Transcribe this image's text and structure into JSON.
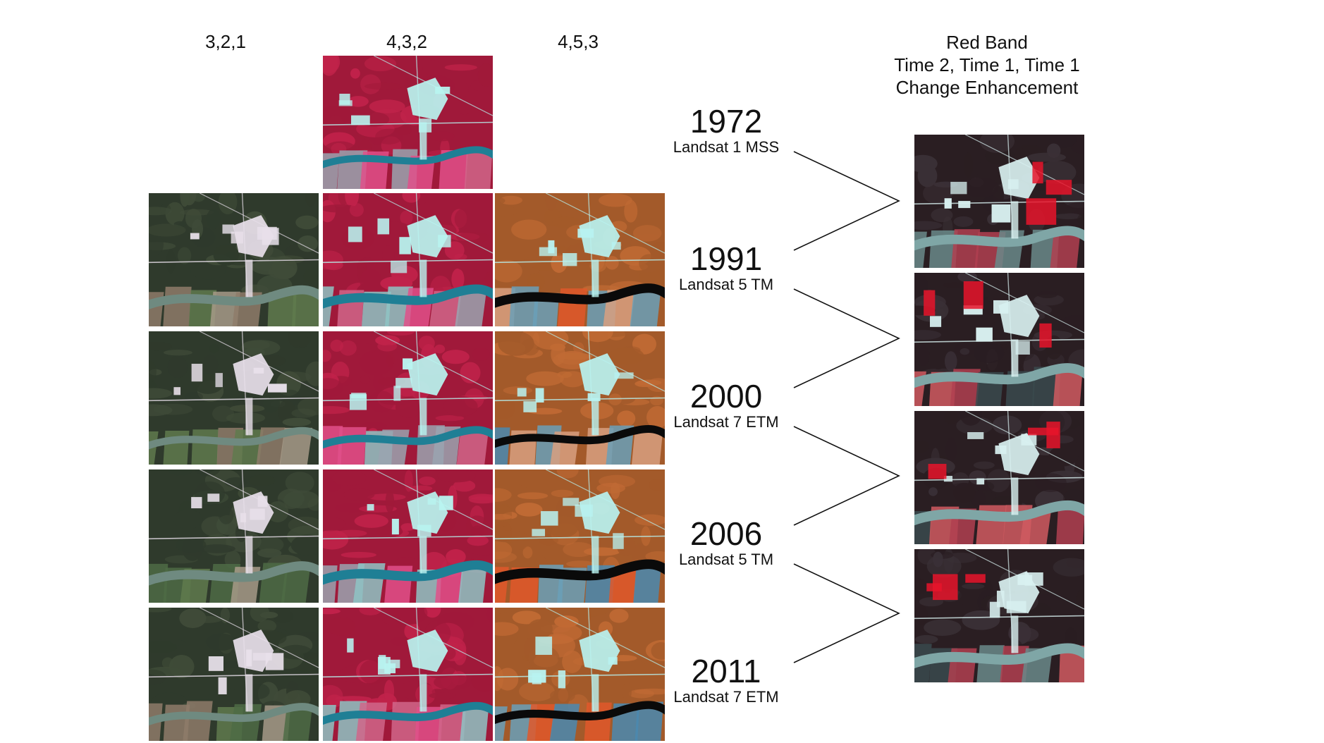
{
  "columns": [
    "3,2,1",
    "4,3,2",
    "4,5,3"
  ],
  "right_title": [
    "Red Band",
    "Time 2, Time 1, Time 1",
    "Change Enhancement"
  ],
  "rows": [
    {
      "year": "1972",
      "sensor": "Landsat 1 MSS"
    },
    {
      "year": "1991",
      "sensor": "Landsat 5 TM"
    },
    {
      "year": "2000",
      "sensor": "Landsat 7 ETM"
    },
    {
      "year": "2006",
      "sensor": "Landsat 5 TM"
    },
    {
      "year": "2011",
      "sensor": "Landsat 7 ETM"
    }
  ],
  "palettes": {
    "true_color_321": {
      "base": "#2f3a2c",
      "mid": "#3f4b38",
      "river": "#6f8a80",
      "fields": [
        "#8e7b6a",
        "#5f7a4e",
        "#a69a88",
        "#4e6b45"
      ],
      "bright": "#e8e0ea"
    },
    "false_color_432": {
      "base": "#a0193a",
      "mid": "#c0224a",
      "river": "#1f7f95",
      "fields": [
        "#d0668a",
        "#8ec4c4",
        "#e0508a",
        "#9aa4b0"
      ],
      "bright": "#b8f4f0"
    },
    "false_color_453": {
      "base": "#a35a2a",
      "mid": "#c06a34",
      "river": "#0a0a0a",
      "fields": [
        "#e0582a",
        "#6aa0b8",
        "#d8a080",
        "#4a8ab0"
      ],
      "bright": "#b8f2f0"
    },
    "change_red": {
      "base": "#2a1e22",
      "mid": "#3a3036",
      "river": "#7fa6a6",
      "fields": [
        "#b04050",
        "#6a8a8a",
        "#d05a60",
        "#3a4a4e"
      ],
      "bright": "#d8f0f0",
      "change": "#e8142a"
    }
  }
}
